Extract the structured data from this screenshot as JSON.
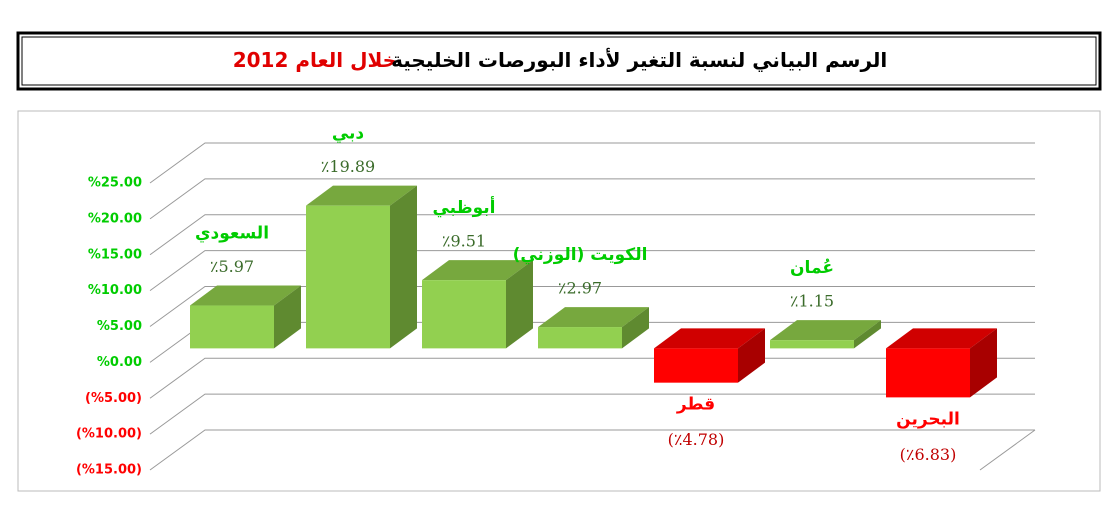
{
  "chart_data": {
    "type": "bar3d",
    "title_parts": [
      {
        "text": "الرسم البياني لنسبة التغير لأداء البورصات الخليجية",
        "color": "#000000"
      },
      {
        "text": "خلال العام 2012",
        "color": "#e00000"
      }
    ],
    "categories": [
      "السعودي",
      "دبي",
      "أبوظبي",
      "الكويت (الوزني)",
      "قطر",
      "عُمان",
      "البحرين"
    ],
    "values": [
      5.97,
      19.89,
      9.51,
      2.97,
      -4.78,
      1.15,
      -6.83
    ],
    "value_labels": [
      "٪5.97",
      "٪19.89",
      "٪9.51",
      "٪2.97",
      "(٪4.78)",
      "٪1.15",
      "(٪6.83)"
    ],
    "positive_color": "#92d050",
    "negative_color": "#ff0000",
    "positive_text_color": "#00cc00",
    "negative_text_color": "#ff0000",
    "ylim": [
      -15,
      25
    ],
    "yticks": [
      {
        "value": -15,
        "label": "(%15.00)"
      },
      {
        "value": -10,
        "label": "(%10.00)"
      },
      {
        "value": -5,
        "label": "(%5.00)"
      },
      {
        "value": 0,
        "label": "%0.00"
      },
      {
        "value": 5,
        "label": "%5.00"
      },
      {
        "value": 10,
        "label": "%10.00"
      },
      {
        "value": 15,
        "label": "%15.00"
      },
      {
        "value": 20,
        "label": "%20.00"
      },
      {
        "value": 25,
        "label": "%25.00"
      }
    ],
    "grid": true
  }
}
